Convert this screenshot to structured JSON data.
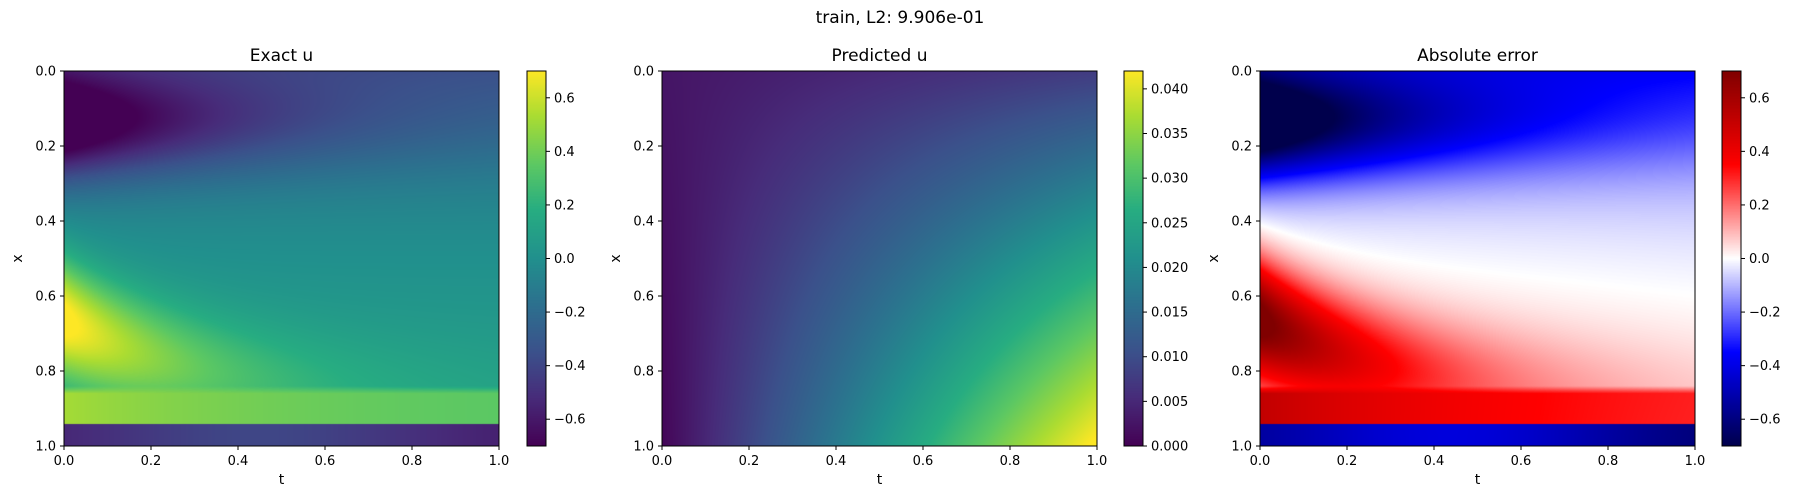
{
  "suptitle": "train, L2: 9.906e-01",
  "chart_data": [
    {
      "type": "heatmap",
      "title": "Exact u",
      "xlabel": "t",
      "ylabel": "x",
      "xlim": [
        0.0,
        1.0
      ],
      "ylim": [
        1.0,
        0.0
      ],
      "xticks": [
        "0.0",
        "0.2",
        "0.4",
        "0.6",
        "0.8",
        "1.0"
      ],
      "yticks": [
        "0.0",
        "0.2",
        "0.4",
        "0.6",
        "0.8",
        "1.0"
      ],
      "colormap": "viridis",
      "clim": [
        -0.7,
        0.7
      ],
      "colorbar_ticks": [
        "−0.6",
        "−0.4",
        "−0.2",
        "0.0",
        "0.2",
        "0.4",
        "0.6"
      ],
      "colorbar_tick_values": [
        -0.6,
        -0.4,
        -0.2,
        0.0,
        0.2,
        0.4,
        0.6
      ],
      "field": "exact"
    },
    {
      "type": "heatmap",
      "title": "Predicted u",
      "xlabel": "t",
      "ylabel": "x",
      "xlim": [
        0.0,
        1.0
      ],
      "ylim": [
        1.0,
        0.0
      ],
      "xticks": [
        "0.0",
        "0.2",
        "0.4",
        "0.6",
        "0.8",
        "1.0"
      ],
      "yticks": [
        "0.0",
        "0.2",
        "0.4",
        "0.6",
        "0.8",
        "1.0"
      ],
      "colormap": "viridis",
      "clim": [
        0.0,
        0.042
      ],
      "colorbar_ticks": [
        "0.000",
        "0.005",
        "0.010",
        "0.015",
        "0.020",
        "0.025",
        "0.030",
        "0.035",
        "0.040"
      ],
      "colorbar_tick_values": [
        0.0,
        0.005,
        0.01,
        0.015,
        0.02,
        0.025,
        0.03,
        0.035,
        0.04
      ],
      "field": "predicted"
    },
    {
      "type": "heatmap",
      "title": "Absolute error",
      "xlabel": "t",
      "ylabel": "x",
      "xlim": [
        0.0,
        1.0
      ],
      "ylim": [
        1.0,
        0.0
      ],
      "xticks": [
        "0.0",
        "0.2",
        "0.4",
        "0.6",
        "0.8",
        "1.0"
      ],
      "yticks": [
        "0.0",
        "0.2",
        "0.4",
        "0.6",
        "0.8",
        "1.0"
      ],
      "colormap": "seismic",
      "clim": [
        -0.7,
        0.7
      ],
      "colorbar_ticks": [
        "−0.6",
        "−0.4",
        "−0.2",
        "0.0",
        "0.2",
        "0.4",
        "0.6"
      ],
      "colorbar_tick_values": [
        -0.6,
        -0.4,
        -0.2,
        0.0,
        0.2,
        0.4,
        0.6
      ],
      "field": "error"
    }
  ]
}
